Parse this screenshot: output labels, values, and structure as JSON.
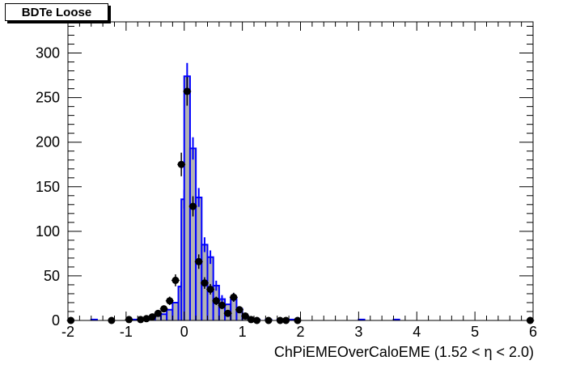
{
  "chart_data": {
    "type": "bar",
    "title": "BDTe Loose",
    "xlabel": "ChPiEMEOverCaloEME (1.52 <   η < 2.0)",
    "ylabel": "",
    "xlim": [
      -2,
      6
    ],
    "ylim": [
      0,
      335
    ],
    "x_ticks": [
      -2,
      -1,
      0,
      1,
      2,
      3,
      4,
      5,
      6
    ],
    "y_ticks": [
      0,
      50,
      100,
      150,
      200,
      250,
      300
    ],
    "grid": false,
    "legend": "none",
    "bin_width": 0.1,
    "series": [
      {
        "kind": "histogram",
        "line_color": "#0000ff",
        "fill_color": "#b3b3b3",
        "bins": [
          {
            "x": -1.6,
            "y": 1
          },
          {
            "x": -0.9,
            "y": 1
          },
          {
            "x": -0.6,
            "y": 3
          },
          {
            "x": -0.5,
            "y": 5
          },
          {
            "x": -0.4,
            "y": 7
          },
          {
            "x": -0.3,
            "y": 12
          },
          {
            "x": -0.2,
            "y": 20
          },
          {
            "x": -0.1,
            "y": 38
          },
          {
            "x": -0.05,
            "y": 136
          },
          {
            "x": 0.0,
            "y": 274
          },
          {
            "x": 0.1,
            "y": 193
          },
          {
            "x": 0.2,
            "y": 138
          },
          {
            "x": 0.3,
            "y": 85
          },
          {
            "x": 0.4,
            "y": 71
          },
          {
            "x": 0.5,
            "y": 39
          },
          {
            "x": 0.6,
            "y": 24
          },
          {
            "x": 0.7,
            "y": 18
          },
          {
            "x": 0.8,
            "y": 26
          },
          {
            "x": 0.9,
            "y": 13
          },
          {
            "x": 1.0,
            "y": 5
          },
          {
            "x": 1.1,
            "y": 2
          },
          {
            "x": 1.2,
            "y": 1
          },
          {
            "x": 1.4,
            "y": 1
          },
          {
            "x": 1.6,
            "y": 1
          },
          {
            "x": 1.8,
            "y": 1
          },
          {
            "x": 3.0,
            "y": 1
          },
          {
            "x": 3.6,
            "y": 1
          }
        ]
      },
      {
        "kind": "points",
        "color": "#000000",
        "points": [
          {
            "x": -1.95,
            "y": 0
          },
          {
            "x": -1.25,
            "y": 0
          },
          {
            "x": -0.95,
            "y": 1
          },
          {
            "x": -0.75,
            "y": 1
          },
          {
            "x": -0.65,
            "y": 2
          },
          {
            "x": -0.55,
            "y": 4
          },
          {
            "x": -0.45,
            "y": 8
          },
          {
            "x": -0.35,
            "y": 13
          },
          {
            "x": -0.25,
            "y": 22
          },
          {
            "x": -0.15,
            "y": 45
          },
          {
            "x": -0.05,
            "y": 175
          },
          {
            "x": 0.05,
            "y": 257
          },
          {
            "x": 0.15,
            "y": 128
          },
          {
            "x": 0.25,
            "y": 66
          },
          {
            "x": 0.35,
            "y": 42
          },
          {
            "x": 0.45,
            "y": 35
          },
          {
            "x": 0.55,
            "y": 22
          },
          {
            "x": 0.65,
            "y": 17
          },
          {
            "x": 0.75,
            "y": 8
          },
          {
            "x": 0.85,
            "y": 26
          },
          {
            "x": 0.95,
            "y": 12
          },
          {
            "x": 1.05,
            "y": 5
          },
          {
            "x": 1.15,
            "y": 1
          },
          {
            "x": 1.25,
            "y": 0
          },
          {
            "x": 1.45,
            "y": 0
          },
          {
            "x": 1.65,
            "y": 0
          },
          {
            "x": 1.75,
            "y": 0
          },
          {
            "x": 1.95,
            "y": 0
          },
          {
            "x": 5.95,
            "y": 0
          }
        ]
      }
    ]
  }
}
